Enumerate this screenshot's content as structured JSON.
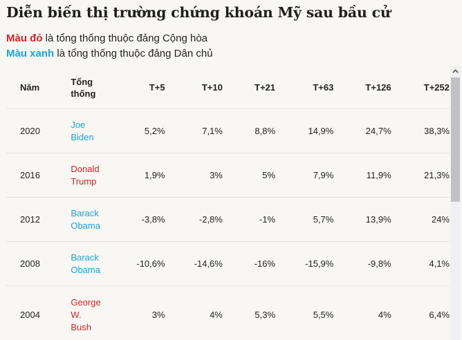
{
  "title": "Diễn biến thị trường chứng khoán Mỹ sau bầu cử",
  "legend": {
    "red_label": "Màu đỏ",
    "red_text": " là tổng thống thuộc đảng Cộng hòa",
    "blue_label": "Màu xanh",
    "blue_text": " là tổng thống thuộc đảng Dân chủ"
  },
  "colors": {
    "republican": "#d0232a",
    "democrat": "#1aa3d9"
  },
  "table": {
    "headers": {
      "year": "Năm",
      "president_line1": "Tổng",
      "president_line2": "thống",
      "t5": "T+5",
      "t10": "T+10",
      "t21": "T+21",
      "t63": "T+63",
      "t126": "T+126",
      "t252": "T+252"
    },
    "rows": [
      {
        "year": "2020",
        "party": "democrat",
        "president_lines": [
          "Joe",
          "Biden"
        ],
        "t5": "5,2%",
        "t10": "7,1%",
        "t21": "8,8%",
        "t63": "14,9%",
        "t126": "24,7%",
        "t252": "38,3%"
      },
      {
        "year": "2016",
        "party": "republican",
        "president_lines": [
          "Donald",
          "Trump"
        ],
        "t5": "1,9%",
        "t10": "3%",
        "t21": "5%",
        "t63": "7,9%",
        "t126": "11,9%",
        "t252": "21,3%"
      },
      {
        "year": "2012",
        "party": "democrat",
        "president_lines": [
          "Barack",
          "Obama"
        ],
        "t5": "-3,8%",
        "t10": "-2,8%",
        "t21": "-1%",
        "t63": "5,7%",
        "t126": "13,9%",
        "t252": "24%"
      },
      {
        "year": "2008",
        "party": "democrat",
        "president_lines": [
          "Barack",
          "Obama"
        ],
        "t5": "-10,6%",
        "t10": "-14,6%",
        "t21": "-16%",
        "t63": "-15,9%",
        "t126": "-9,8%",
        "t252": "4,1%"
      },
      {
        "year": "2004",
        "party": "republican",
        "president_lines": [
          "George",
          "W.",
          "Bush"
        ],
        "t5": "3%",
        "t10": "4%",
        "t21": "5,3%",
        "t63": "5,5%",
        "t126": "4%",
        "t252": "6,4%"
      }
    ]
  },
  "scrollbar": {
    "up_icon": "chevron-up-icon"
  }
}
